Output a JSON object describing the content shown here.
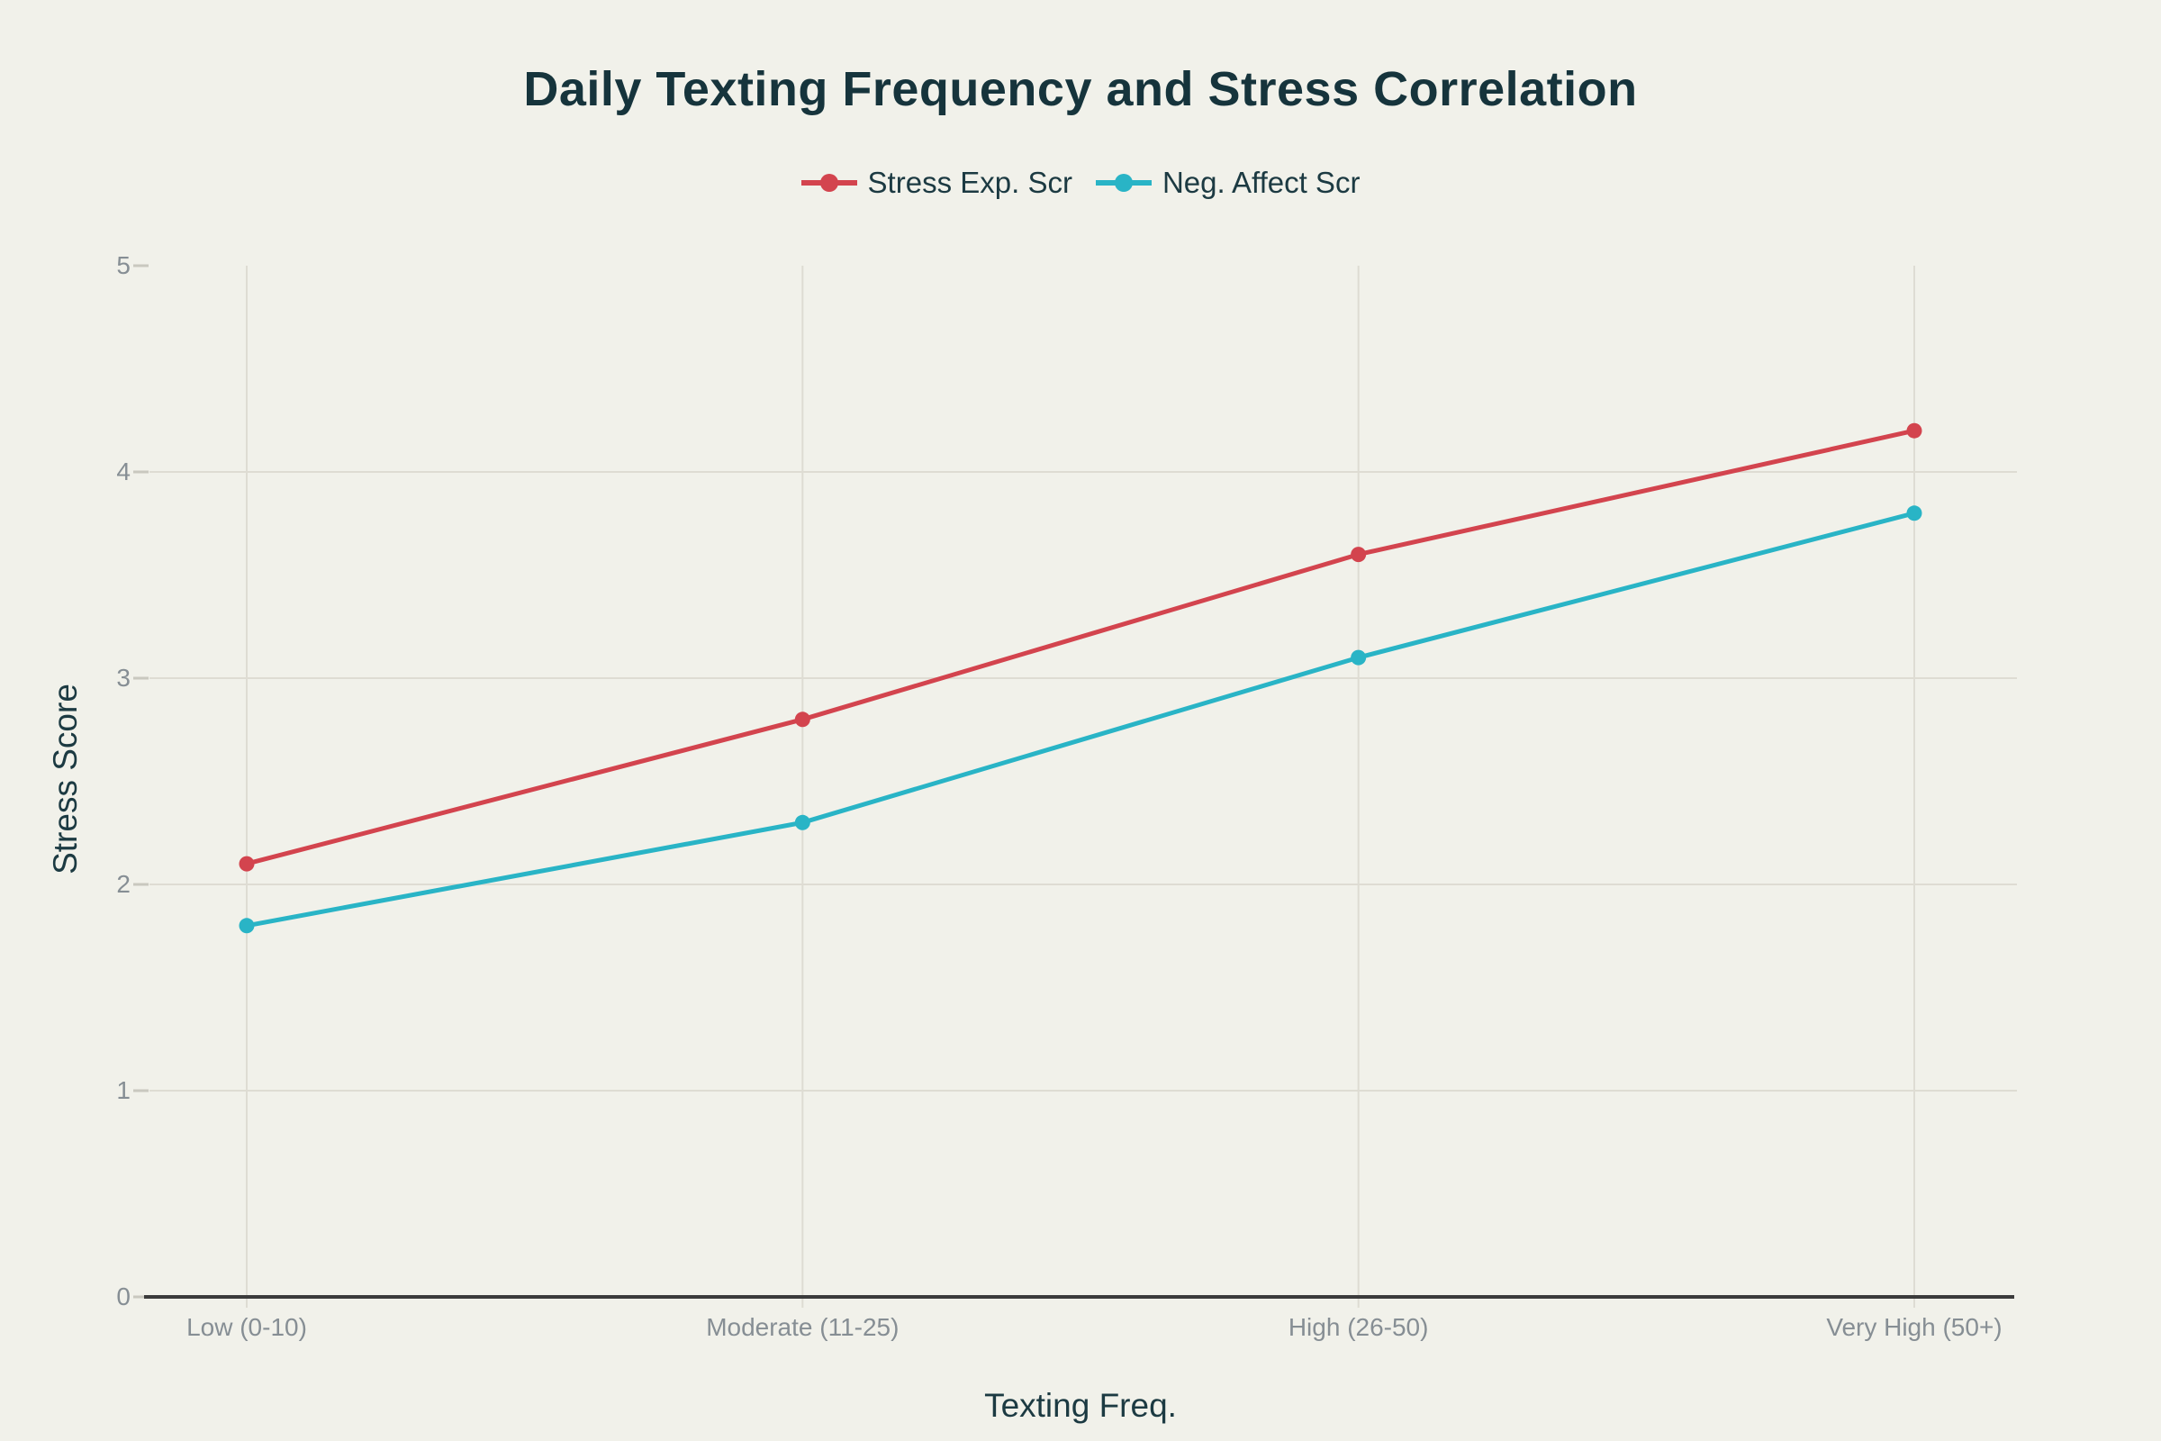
{
  "page": {
    "background_color": "#f1f1ea",
    "title_color": "#16343c",
    "axis_title_color": "#1c3a42",
    "tick_label_color": "#868e94",
    "gridline_color": "#dedcd3",
    "axis_line_color": "#3b3b3b"
  },
  "chart_data": {
    "type": "line",
    "title": "Daily Texting Frequency and Stress Correlation",
    "xlabel": "Texting Freq.",
    "ylabel": "Stress Score",
    "categories": [
      "Low (0-10)",
      "Moderate (11-25)",
      "High (26-50)",
      "Very High (50+)"
    ],
    "series": [
      {
        "name": "Stress Exp. Scr",
        "color": "#d3444e",
        "values": [
          2.1,
          2.8,
          3.6,
          4.2
        ]
      },
      {
        "name": "Neg. Affect Scr",
        "color": "#29b4c6",
        "values": [
          1.8,
          2.3,
          3.1,
          3.8
        ]
      }
    ],
    "y_ticks": [
      0,
      1,
      2,
      3,
      4,
      5
    ],
    "ylim": [
      0,
      5
    ],
    "grid": true,
    "legend_position": "top",
    "marker": "circle"
  }
}
